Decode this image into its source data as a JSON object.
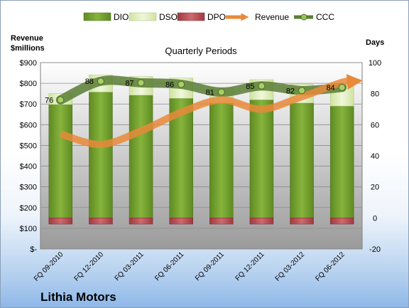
{
  "chart_data": {
    "type": "bar",
    "title": "Quarterly Periods",
    "company": "Lithia Motors",
    "left_axis_label_line1": "Revenue",
    "left_axis_label_line2": "$millions",
    "right_axis_label": "Days",
    "categories": [
      "FQ 09-2010",
      "FQ 12-2010",
      "FQ 03-2011",
      "FQ 06-2011",
      "FQ 09-2011",
      "FQ 12-2011",
      "FQ 03-2012",
      "FQ 06-2012"
    ],
    "left_ticks": [
      "$-",
      "$100",
      "$200",
      "$300",
      "$400",
      "$500",
      "$600",
      "$700",
      "$800",
      "$900"
    ],
    "left_ylim": [
      0,
      900
    ],
    "right_ticks": [
      "-20",
      "0",
      "20",
      "40",
      "60",
      "80",
      "100"
    ],
    "right_ylim": [
      -20,
      100
    ],
    "legend_position": "top",
    "legend": [
      "DIO",
      "DSO",
      "DPO",
      "Revenue",
      "CCC"
    ],
    "series": [
      {
        "name": "DIO",
        "type": "stacked-bar",
        "axis": "right",
        "color": "#6f9a2c",
        "values": [
          73,
          81,
          79,
          77,
          74,
          76,
          74,
          72
        ]
      },
      {
        "name": "DSO",
        "type": "stacked-bar",
        "axis": "right",
        "color": "#dfeeb6",
        "values": [
          7,
          11,
          12,
          13,
          10,
          13,
          12,
          13
        ]
      },
      {
        "name": "DPO",
        "type": "bar-negative",
        "axis": "right",
        "color": "#b84a50",
        "values": [
          -4,
          -4,
          -4,
          -4,
          -4,
          -4,
          -4,
          -4
        ]
      },
      {
        "name": "Revenue",
        "type": "line",
        "axis": "left",
        "color": "#e9893a",
        "values": [
          555,
          505,
          570,
          660,
          720,
          675,
          735,
          805
        ]
      },
      {
        "name": "CCC",
        "type": "line",
        "axis": "right",
        "color": "#5a7d35",
        "values": [
          76,
          88,
          87,
          86,
          81,
          85,
          82,
          84
        ]
      }
    ],
    "ccc_labels": [
      "76",
      "88",
      "87",
      "86",
      "81",
      "85",
      "82",
      "84"
    ],
    "grid": true
  }
}
